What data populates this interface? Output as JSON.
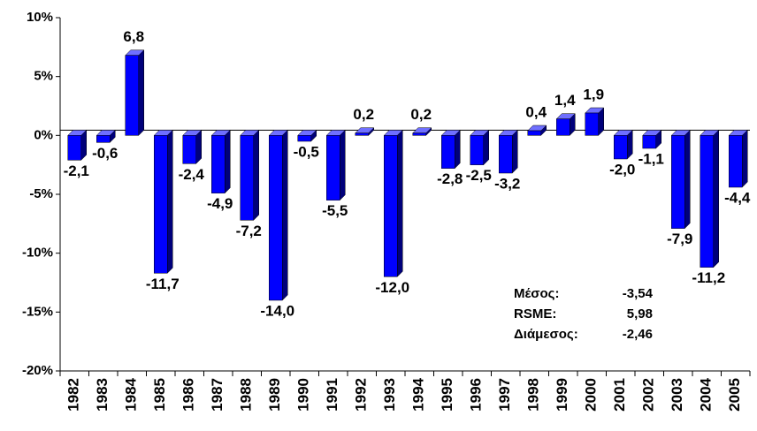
{
  "chart_data": {
    "type": "bar",
    "categories": [
      "1982",
      "1983",
      "1984",
      "1985",
      "1986",
      "1987",
      "1988",
      "1989",
      "1990",
      "1991",
      "1992",
      "1993",
      "1994",
      "1995",
      "1996",
      "1997",
      "1998",
      "1999",
      "2000",
      "2001",
      "2002",
      "2003",
      "2004",
      "2005"
    ],
    "values": [
      -2.1,
      -0.6,
      6.8,
      -11.7,
      -2.4,
      -4.9,
      -7.2,
      -14.0,
      -0.5,
      -5.5,
      0.2,
      -12.0,
      0.2,
      -2.8,
      -2.5,
      -3.2,
      0.4,
      1.4,
      1.9,
      -2.0,
      -1.1,
      -7.9,
      -11.2,
      -4.4
    ],
    "value_labels": [
      "-2,1",
      "-0,6",
      "6,8",
      "-11,7",
      "-2,4",
      "-4,9",
      "-7,2",
      "-14,0",
      "-0,5",
      "-5,5",
      "0,2",
      "-12,0",
      "0,2",
      "-2,8",
      "-2,5",
      "-3,2",
      "0,4",
      "1,4",
      "1,9",
      "-2,0",
      "-1,1",
      "-7,9",
      "-11,2",
      "-4,4"
    ],
    "color": "#0000ff",
    "ylim": [
      -20,
      10
    ],
    "yticks": [
      {
        "value": -20,
        "label": "-20%"
      },
      {
        "value": -15,
        "label": "-15%"
      },
      {
        "value": -10,
        "label": "-10%"
      },
      {
        "value": -5,
        "label": "-5%"
      },
      {
        "value": 0,
        "label": "0%"
      },
      {
        "value": 5,
        "label": "5%"
      },
      {
        "value": 10,
        "label": "10%"
      }
    ],
    "annotations": [
      {
        "label": "Μέσος:",
        "value": "-3,54"
      },
      {
        "label": "RSME:",
        "value": "5,98"
      },
      {
        "label": "Διάμεσος:",
        "value": "-2,46"
      }
    ]
  }
}
